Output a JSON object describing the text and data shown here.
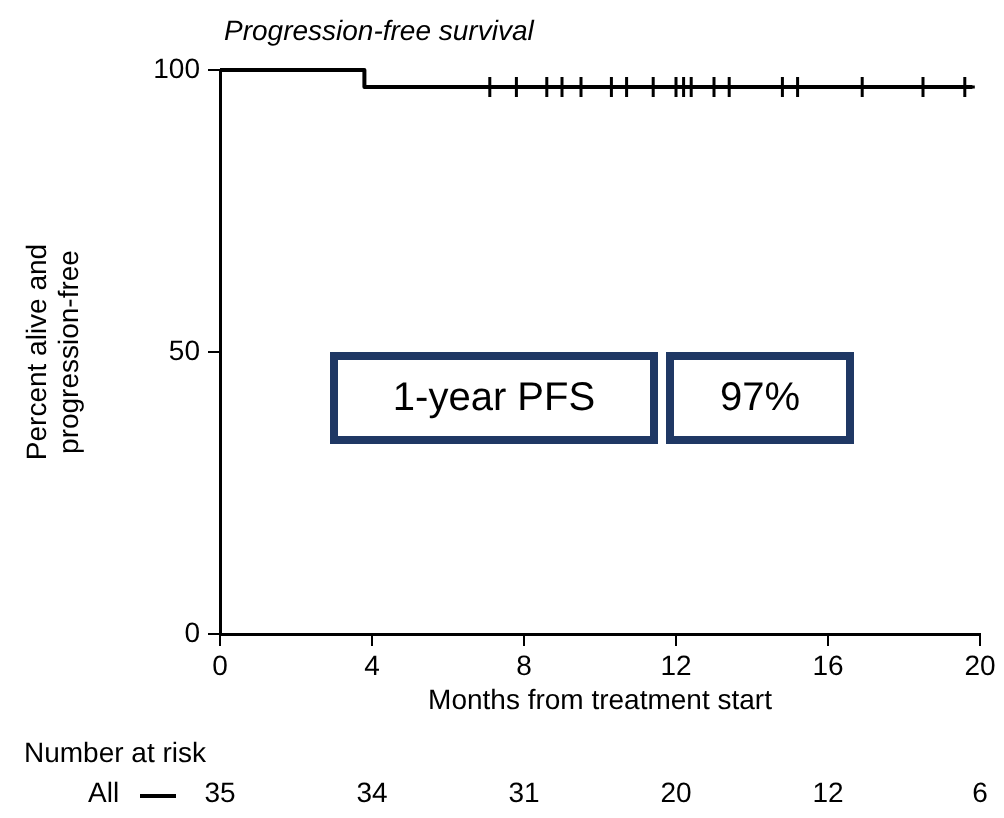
{
  "chart_data": {
    "type": "step",
    "title": "Progression-free survival",
    "xlabel": "Months from treatment start",
    "ylabel": "Percent alive and progression-free",
    "xlim": [
      0,
      20
    ],
    "xticks": [
      0,
      4,
      8,
      12,
      16,
      20
    ],
    "ylim": [
      0,
      100
    ],
    "yticks": [
      0,
      50,
      100
    ],
    "grid": false,
    "legend": false,
    "series": [
      {
        "color": "#000000",
        "x": [
          0,
          3.8,
          19.8
        ],
        "values": [
          100,
          97,
          97
        ]
      },
      {
        "type": "scatter",
        "color": "#000000",
        "marker": "cross",
        "x": [
          7.1,
          7.8,
          8.6,
          9.0,
          9.5,
          10.3,
          10.7,
          11.4,
          12.0,
          12.2,
          12.4,
          13.0,
          13.4,
          14.8,
          15.2,
          16.9,
          18.5,
          19.6
        ],
        "values": [
          97,
          97,
          97,
          97,
          97,
          97,
          97,
          97,
          97,
          97,
          97,
          97,
          97,
          97,
          97,
          97,
          97,
          97
        ]
      }
    ],
    "annotations": [
      "1-year PFS",
      "97%",
      "Number at risk",
      "All",
      "35",
      "34",
      "31",
      "20",
      "12",
      "6"
    ]
  }
}
